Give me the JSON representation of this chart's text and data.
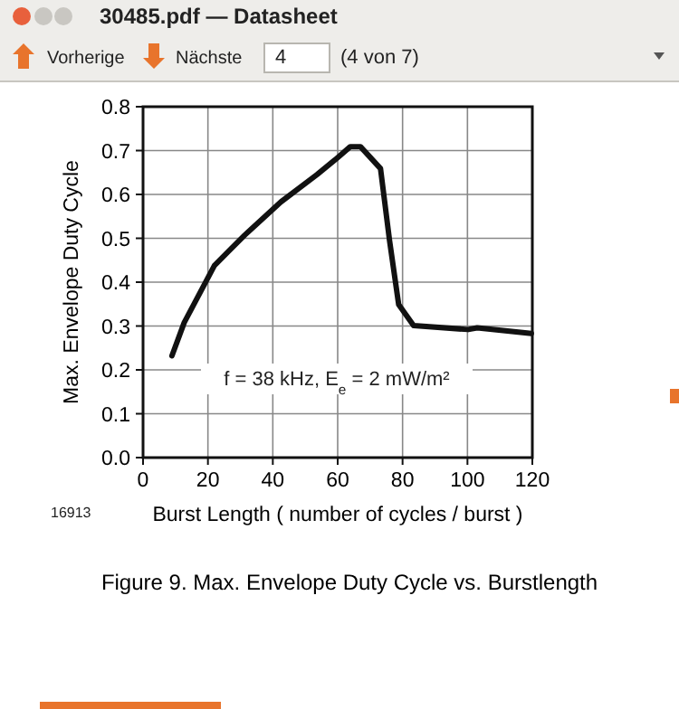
{
  "chart_data": {
    "type": "line",
    "title": "Figure 9. Max. Envelope Duty Cycle vs. Burstlength",
    "xlabel": "Burst Length ( number of cycles / burst )",
    "ylabel": "Max. Envelope Duty Cycle",
    "x": [
      8.9,
      12.7,
      22,
      31.3,
      42.5,
      53.6,
      59.2,
      63.9,
      67,
      73.2,
      76,
      78.8,
      83.4,
      100.2,
      103,
      119.7
    ],
    "series": [
      {
        "color": "#111111",
        "values": [
          0.232,
          0.308,
          0.438,
          0.507,
          0.583,
          0.645,
          0.679,
          0.709,
          0.709,
          0.659,
          0.494,
          0.349,
          0.301,
          0.292,
          0.296,
          0.283
        ]
      }
    ],
    "xlim": [
      0,
      120
    ],
    "xticks": [
      0,
      20,
      40,
      60,
      80,
      100,
      120
    ],
    "ylim": [
      0,
      0.8
    ],
    "yticks": [
      {
        "value": 0,
        "label": "0.0"
      },
      0.1,
      0.2,
      0.3,
      0.4,
      0.5,
      0.6,
      0.7,
      0.8
    ],
    "grid": true,
    "marker": "none",
    "line_style": "solid",
    "annotations": [
      "30485.pdf — Datasheet",
      "Vorherige",
      "Nächste",
      "4",
      "(4 von 7)",
      "f = 38 kHz, E$_{e}$ = 2 mW/m²",
      "16913"
    ]
  }
}
